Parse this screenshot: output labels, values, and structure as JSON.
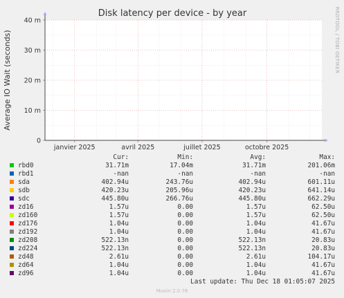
{
  "chart_data": {
    "type": "line",
    "title": "Disk latency per device - by year",
    "ylabel": "Average IO Wait (seconds)",
    "xlabel": "",
    "ylim": [
      0,
      0.04
    ],
    "yticks": [
      {
        "value": 0,
        "label": "0"
      },
      {
        "value": 0.01,
        "label": "10 m"
      },
      {
        "value": 0.02,
        "label": "20 m"
      },
      {
        "value": 0.03,
        "label": "30 m"
      },
      {
        "value": 0.04,
        "label": "40 m"
      }
    ],
    "xlim": [
      "2024-11-20",
      "2025-12-18"
    ],
    "xticks": [
      {
        "date": "2025-01-01",
        "label": "janvier 2025"
      },
      {
        "date": "2025-04-01",
        "label": "avril 2025"
      },
      {
        "date": "2025-07-01",
        "label": "juillet 2025"
      },
      {
        "date": "2025-10-01",
        "label": "octobre 2025"
      }
    ],
    "grid": true,
    "side_label": "RRDTOOL / TOBI OETIKER",
    "columns": [
      "Cur:",
      "Min:",
      "Avg:",
      "Max:"
    ],
    "series": [
      {
        "name": "rbd0",
        "color": "#00cc00",
        "cur": "31.71m",
        "min": "17.04m",
        "avg": "31.71m",
        "max": "201.06m"
      },
      {
        "name": "rbd1",
        "color": "#0066b3",
        "cur": "-nan",
        "min": "-nan",
        "avg": "-nan",
        "max": "-nan"
      },
      {
        "name": "sda",
        "color": "#ff8000",
        "cur": "402.94u",
        "min": "243.76u",
        "avg": "402.94u",
        "max": "601.11u"
      },
      {
        "name": "sdb",
        "color": "#ffcc00",
        "cur": "420.23u",
        "min": "205.96u",
        "avg": "420.23u",
        "max": "641.14u"
      },
      {
        "name": "sdc",
        "color": "#330099",
        "cur": "445.80u",
        "min": "266.76u",
        "avg": "445.80u",
        "max": "662.29u"
      },
      {
        "name": "zd16",
        "color": "#990099",
        "cur": "1.57u",
        "min": "0.00",
        "avg": "1.57u",
        "max": "62.50u"
      },
      {
        "name": "zd160",
        "color": "#ccff00",
        "cur": "1.57u",
        "min": "0.00",
        "avg": "1.57u",
        "max": "62.50u"
      },
      {
        "name": "zd176",
        "color": "#ff0000",
        "cur": "1.04u",
        "min": "0.00",
        "avg": "1.04u",
        "max": "41.67u"
      },
      {
        "name": "zd192",
        "color": "#808080",
        "cur": "1.04u",
        "min": "0.00",
        "avg": "1.04u",
        "max": "41.67u"
      },
      {
        "name": "zd208",
        "color": "#008f00",
        "cur": "522.13n",
        "min": "0.00",
        "avg": "522.13n",
        "max": "20.83u"
      },
      {
        "name": "zd224",
        "color": "#00487d",
        "cur": "522.13n",
        "min": "0.00",
        "avg": "522.13n",
        "max": "20.83u"
      },
      {
        "name": "zd48",
        "color": "#b35a00",
        "cur": "2.61u",
        "min": "0.00",
        "avg": "2.61u",
        "max": "104.17u"
      },
      {
        "name": "zd64",
        "color": "#b38f00",
        "cur": "1.04u",
        "min": "0.00",
        "avg": "1.04u",
        "max": "41.67u"
      },
      {
        "name": "zd96",
        "color": "#6b006b",
        "cur": "1.04u",
        "min": "0.00",
        "avg": "1.04u",
        "max": "41.67u"
      }
    ]
  },
  "footer": {
    "last_update": "Last update: Thu Dec 18 01:05:07 2025",
    "munin": "Munin 2.0.76"
  }
}
